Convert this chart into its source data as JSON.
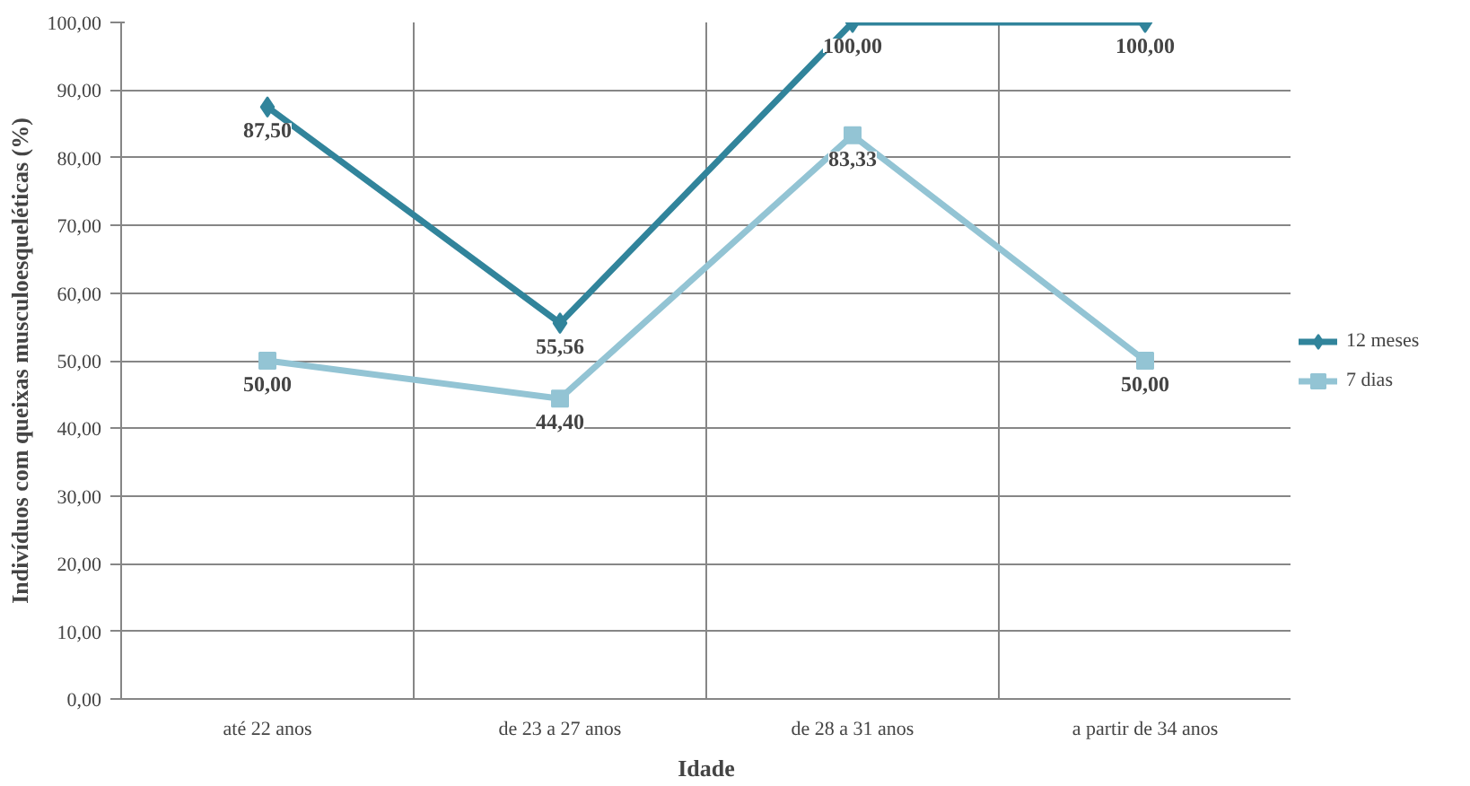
{
  "chart_data": {
    "type": "line",
    "xlabel": "Idade",
    "ylabel": "Indivíduos com queixas musculoesqueléticas (%)",
    "categories": [
      "até 22 anos",
      "de 23 a 27 anos",
      "de 28 a 31 anos",
      "a partir de 34 anos"
    ],
    "series": [
      {
        "name": "12 meses",
        "color": "#31849b",
        "marker": "diamond",
        "values": [
          87.5,
          55.56,
          100,
          100
        ],
        "value_labels": [
          "87,50",
          "55,56",
          "100,00",
          "100,00"
        ]
      },
      {
        "name": "7 dias",
        "color": "#93c4d4",
        "marker": "square",
        "values": [
          50,
          44.4,
          83.33,
          50
        ],
        "value_labels": [
          "50,00",
          "44,40",
          "83,33",
          "50,00"
        ]
      }
    ],
    "ylim": [
      0,
      100
    ],
    "yticks": [
      {
        "value": 0,
        "label": "0,00"
      },
      {
        "value": 10,
        "label": "10,00"
      },
      {
        "value": 20,
        "label": "20,00"
      },
      {
        "value": 30,
        "label": "30,00"
      },
      {
        "value": 40,
        "label": "40,00"
      },
      {
        "value": 50,
        "label": "50,00"
      },
      {
        "value": 60,
        "label": "60,00"
      },
      {
        "value": 70,
        "label": "70,00"
      },
      {
        "value": 80,
        "label": "80,00"
      },
      {
        "value": 90,
        "label": "90,00"
      },
      {
        "value": 100,
        "label": "100,00"
      }
    ],
    "grid": true,
    "legend": "right",
    "line_style": "solid"
  }
}
